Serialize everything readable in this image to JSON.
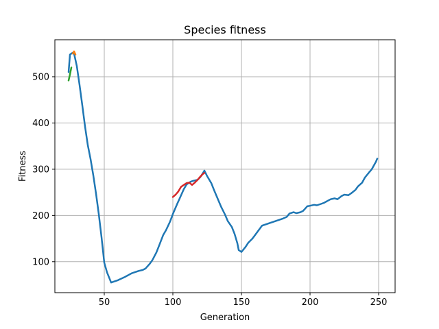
{
  "chart_data": {
    "type": "line",
    "title": "Species fitness",
    "xlabel": "Generation",
    "ylabel": "Fitness",
    "xlim": [
      14,
      262
    ],
    "ylim": [
      33,
      580
    ],
    "xticks": [
      50,
      100,
      150,
      200,
      250
    ],
    "yticks": [
      100,
      200,
      300,
      400,
      500
    ],
    "grid": true,
    "series": [
      {
        "color": "#1f77b4",
        "x": [
          24,
          25,
          26,
          27,
          28,
          30,
          32,
          34,
          36,
          38,
          40,
          42,
          44,
          46,
          48,
          50,
          52,
          55,
          60,
          65,
          70,
          75,
          78,
          80,
          83,
          85,
          88,
          90,
          93,
          95,
          98,
          100,
          103,
          105,
          108,
          110,
          113,
          115,
          118,
          120,
          122,
          123,
          125,
          128,
          130,
          133,
          135,
          138,
          140,
          143,
          145,
          147,
          148,
          150,
          153,
          155,
          158,
          160,
          163,
          165,
          168,
          170,
          175,
          180,
          183,
          185,
          188,
          190,
          193,
          195,
          198,
          200,
          203,
          205,
          208,
          210,
          213,
          215,
          218,
          220,
          223,
          225,
          228,
          230,
          233,
          235,
          238,
          240,
          243,
          245,
          248,
          249
        ],
        "y": [
          510,
          548,
          550,
          552,
          550,
          523,
          482,
          438,
          392,
          352,
          322,
          287,
          247,
          203,
          153,
          98,
          77,
          55,
          60,
          67,
          75,
          80,
          82,
          85,
          95,
          103,
          120,
          135,
          158,
          168,
          187,
          203,
          224,
          237,
          257,
          267,
          273,
          275,
          277,
          283,
          292,
          297,
          285,
          270,
          255,
          234,
          220,
          202,
          188,
          175,
          160,
          140,
          125,
          121,
          132,
          141,
          150,
          158,
          170,
          178,
          181,
          183,
          188,
          193,
          197,
          204,
          207,
          205,
          207,
          210,
          220,
          221,
          223,
          222,
          225,
          227,
          232,
          235,
          237,
          235,
          242,
          245,
          244,
          248,
          255,
          263,
          271,
          282,
          293,
          300,
          316,
          323
        ]
      },
      {
        "color": "#ff7f0e",
        "x": [
          27,
          28,
          29
        ],
        "y": [
          550,
          555,
          548
        ]
      },
      {
        "color": "#2ca02c",
        "x": [
          24,
          25,
          26
        ],
        "y": [
          492,
          505,
          520
        ]
      },
      {
        "color": "#d62728",
        "x": [
          100,
          102,
          104,
          106,
          108,
          110,
          112,
          114,
          116,
          118,
          120,
          122,
          123
        ],
        "y": [
          240,
          245,
          252,
          262,
          266,
          270,
          271,
          266,
          271,
          277,
          284,
          290,
          292
        ]
      }
    ]
  }
}
